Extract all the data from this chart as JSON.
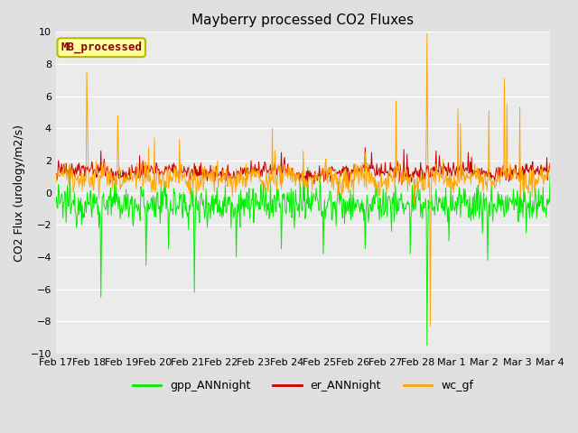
{
  "title": "Mayberry processed CO2 Fluxes",
  "ylabel": "CO2 Flux (urology/m2/s)",
  "ylim": [
    -10,
    10
  ],
  "yticks": [
    -10,
    -8,
    -6,
    -4,
    -2,
    0,
    2,
    4,
    6,
    8,
    10
  ],
  "fig_bg_color": "#e0e0e0",
  "plot_bg_color": "#ebebeb",
  "legend_label": "MB_processed",
  "legend_label_color": "#8B0000",
  "legend_box_facecolor": "#ffffa0",
  "legend_box_edgecolor": "#b8b800",
  "series_labels": [
    "gpp_ANNnight",
    "er_ANNnight",
    "wc_gf"
  ],
  "series_colors": [
    "#00ee00",
    "#cc0000",
    "#ffa500"
  ],
  "line_width": 0.7,
  "n_points": 768,
  "xtick_labels": [
    "Feb 17",
    "Feb 18",
    "Feb 19",
    "Feb 20",
    "Feb 21",
    "Feb 22",
    "Feb 23",
    "Feb 24",
    "Feb 25",
    "Feb 26",
    "Feb 27",
    "Feb 28",
    "Mar 1",
    "Mar 2",
    "Mar 3",
    "Mar 4"
  ],
  "seed": 12345
}
